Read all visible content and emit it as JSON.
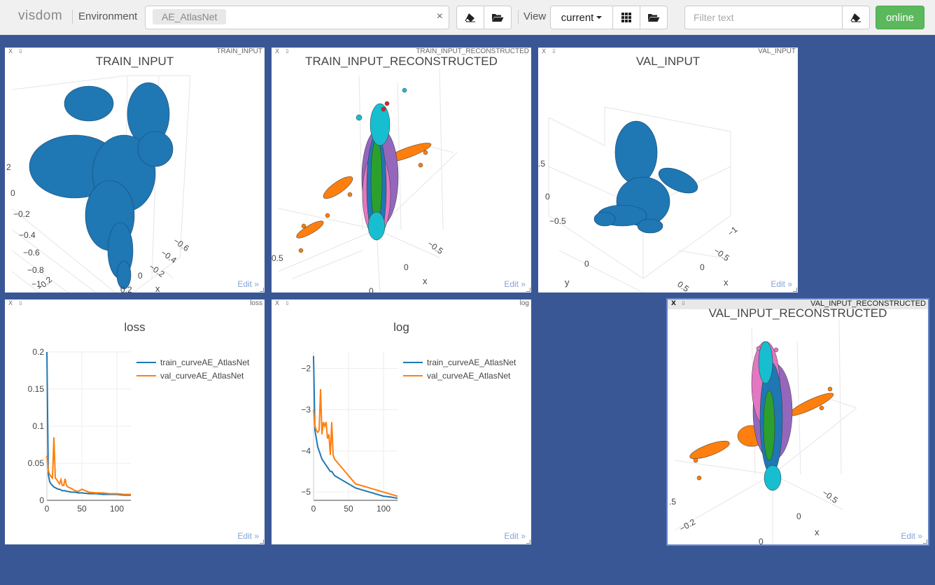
{
  "app": {
    "brand": "visdom",
    "status_button": "online"
  },
  "toolbar": {
    "environment_label": "Environment",
    "environment_value": "AE_AtlasNet",
    "clear_symbol": "×",
    "view_label": "View",
    "view_value": "current",
    "filter_placeholder": "Filter text"
  },
  "panes": {
    "train_input": {
      "name": "TRAIN_INPUT",
      "title": "TRAIN_INPUT",
      "edit": "Edit »",
      "ticks": [
        "2",
        "0",
        "−0.2",
        "−0.4",
        "−0.6",
        "−0.8",
        "−1",
        "−0.2",
        "0",
        "−0.2",
        "−0.4",
        "−0.6",
        "0.2"
      ],
      "axis": "x"
    },
    "train_input_reconstructed": {
      "name": "TRAIN_INPUT_RECONSTRUCTED",
      "title": "TRAIN_INPUT_RECONSTRUCTED",
      "edit": "Edit »",
      "ticks": [
        "0.5",
        "0",
        "−0.5",
        "0"
      ],
      "axis": "x"
    },
    "val_input": {
      "name": "VAL_INPUT",
      "title": "VAL_INPUT",
      "edit": "Edit »",
      "ticks": [
        ".5",
        "0",
        "−0.5",
        "0",
        "−1",
        "−0.5",
        "0",
        "0.5"
      ],
      "axis_x": "x",
      "axis_y": "y"
    },
    "val_input_reconstructed": {
      "name": "VAL_INPUT_RECONSTRUCTED",
      "title": "VAL_INPUT_RECONSTRUCTED",
      "edit": "Edit »",
      "ticks": [
        ".5",
        "−0.2",
        "0",
        "−0.5",
        "0"
      ],
      "axis": "x"
    },
    "loss": {
      "name": "loss",
      "title": "loss",
      "edit": "Edit »"
    },
    "log": {
      "name": "log",
      "title": "log",
      "edit": "Edit »"
    }
  },
  "colors": {
    "background": "#3a5795",
    "train_series": "#1f77b4",
    "val_series": "#ff7f0e",
    "online": "#5cb85c"
  },
  "icons": [
    "eraser-icon",
    "folder-open-icon",
    "grid-icon",
    "close-icon",
    "download-icon"
  ],
  "chart_data": [
    {
      "type": "line",
      "title": "loss",
      "xlim": [
        0,
        120
      ],
      "ylim": [
        0,
        0.2
      ],
      "x_ticks": [
        "0",
        "50",
        "100"
      ],
      "y_ticks": [
        "0",
        "0.05",
        "0.1",
        "0.15",
        "0.2"
      ],
      "grid": true,
      "legend": "top-right",
      "x": [
        0,
        2,
        4,
        6,
        8,
        10,
        12,
        14,
        16,
        18,
        20,
        22,
        24,
        26,
        28,
        30,
        35,
        40,
        45,
        50,
        60,
        70,
        80,
        90,
        100,
        110,
        120
      ],
      "series": [
        {
          "name": "train_curveAE_AtlasNet",
          "values": [
            0.2,
            0.035,
            0.025,
            0.022,
            0.02,
            0.018,
            0.017,
            0.016,
            0.015,
            0.015,
            0.014,
            0.013,
            0.013,
            0.013,
            0.012,
            0.012,
            0.011,
            0.011,
            0.01,
            0.01,
            0.009,
            0.009,
            0.008,
            0.008,
            0.008,
            0.007,
            0.007
          ]
        },
        {
          "name": "val_curveAE_AtlasNet",
          "values": [
            0.06,
            0.04,
            0.035,
            0.032,
            0.03,
            0.085,
            0.03,
            0.028,
            0.025,
            0.022,
            0.028,
            0.02,
            0.02,
            0.029,
            0.02,
            0.018,
            0.016,
            0.013,
            0.012,
            0.015,
            0.011,
            0.01,
            0.01,
            0.009,
            0.009,
            0.008,
            0.008
          ]
        }
      ]
    },
    {
      "type": "line",
      "title": "log",
      "xlim": [
        0,
        120
      ],
      "ylim": [
        -5.2,
        -1.6
      ],
      "x_ticks": [
        "0",
        "50",
        "100"
      ],
      "y_ticks": [
        "−2",
        "−3",
        "−4",
        "−5"
      ],
      "grid": true,
      "legend": "top-right",
      "x": [
        0,
        2,
        4,
        6,
        8,
        10,
        12,
        14,
        16,
        18,
        20,
        22,
        24,
        26,
        28,
        30,
        35,
        40,
        45,
        50,
        60,
        70,
        80,
        90,
        100,
        110,
        120
      ],
      "series": [
        {
          "name": "train_curveAE_AtlasNet",
          "values": [
            -1.7,
            -3.5,
            -3.7,
            -3.9,
            -4.0,
            -4.1,
            -4.2,
            -4.25,
            -4.3,
            -4.35,
            -4.4,
            -4.45,
            -4.5,
            -4.5,
            -4.55,
            -4.6,
            -4.65,
            -4.7,
            -4.75,
            -4.8,
            -4.9,
            -4.95,
            -5.0,
            -5.05,
            -5.1,
            -5.12,
            -5.15
          ]
        },
        {
          "name": "val_curveAE_AtlasNet",
          "values": [
            -3.0,
            -3.4,
            -3.5,
            -3.55,
            -3.5,
            -2.5,
            -3.6,
            -3.3,
            -3.4,
            -3.3,
            -3.7,
            -3.6,
            -4.1,
            -3.3,
            -4.1,
            -4.2,
            -4.3,
            -4.4,
            -4.5,
            -4.6,
            -4.8,
            -4.85,
            -4.9,
            -4.95,
            -5.0,
            -5.05,
            -5.1
          ]
        }
      ]
    }
  ]
}
